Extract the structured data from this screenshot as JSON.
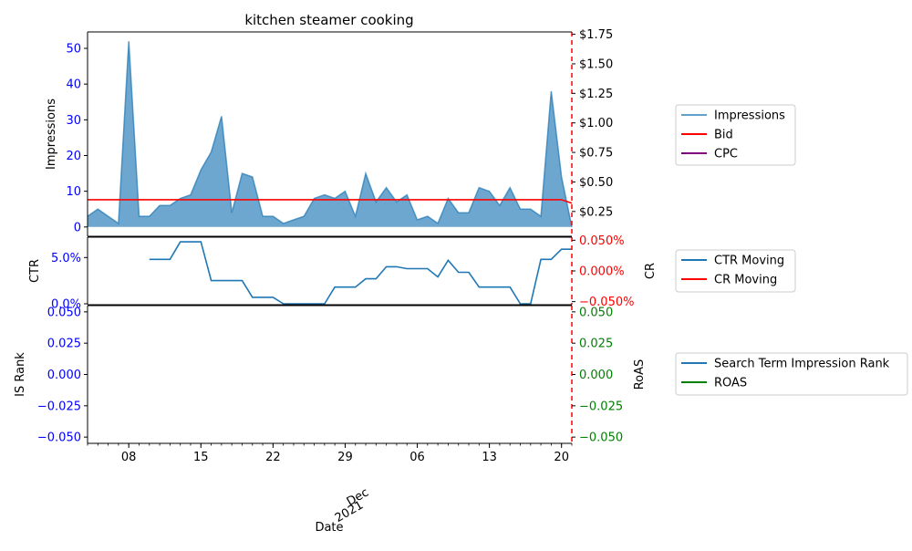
{
  "colors": {
    "impressions": "#1f77b4",
    "bid": "#ff0000",
    "cpc": "#800080",
    "ctr": "#1f77b4",
    "cr": "#ff0000",
    "is_rank": "#1f77b4",
    "roas": "#008000",
    "left_ticks": "#0000ff",
    "cr_ticks": "#ff0000",
    "roas_ticks": "#008000"
  },
  "chart_data": {
    "type": "line",
    "title": "kitchen steamer cooking",
    "x_axis": {
      "label": "Date",
      "start": "2021-11-04",
      "end": "2021-12-21",
      "tick_labels": [
        "08",
        "15",
        "22",
        "29",
        "06",
        "13",
        "20"
      ],
      "tick_dates": [
        "2021-11-08",
        "2021-11-15",
        "2021-11-22",
        "2021-11-29",
        "2021-12-06",
        "2021-12-13",
        "2021-12-20"
      ],
      "month_label": "Dec",
      "year_label": "2021",
      "month_label_date": "2021-12-01"
    },
    "panels": [
      {
        "name": "impressions-panel",
        "left_axis": {
          "label": "Impressions",
          "ylim": [
            -2.6,
            54.6
          ],
          "ticks": [
            0,
            10,
            20,
            30,
            40,
            50
          ],
          "tick_labels": [
            "0",
            "10",
            "20",
            "30",
            "40",
            "50"
          ]
        },
        "right_axis": {
          "label": "",
          "ylim": [
            0.04,
            1.77
          ],
          "ticks": [
            0.25,
            0.5,
            0.75,
            1.0,
            1.25,
            1.5,
            1.75
          ],
          "tick_labels": [
            "$0.25",
            "$0.50",
            "$0.75",
            "$1.00",
            "$1.25",
            "$1.50",
            "$1.75"
          ]
        },
        "legend": [
          "Impressions",
          "Bid",
          "CPC"
        ],
        "series": [
          {
            "name": "Impressions",
            "axis": "left",
            "kind": "area",
            "x": [
              "2021-11-04",
              "2021-11-05",
              "2021-11-06",
              "2021-11-07",
              "2021-11-08",
              "2021-11-09",
              "2021-11-10",
              "2021-11-11",
              "2021-11-12",
              "2021-11-13",
              "2021-11-14",
              "2021-11-15",
              "2021-11-16",
              "2021-11-17",
              "2021-11-18",
              "2021-11-19",
              "2021-11-20",
              "2021-11-21",
              "2021-11-22",
              "2021-11-23",
              "2021-11-24",
              "2021-11-25",
              "2021-11-26",
              "2021-11-27",
              "2021-11-28",
              "2021-11-29",
              "2021-11-30",
              "2021-12-01",
              "2021-12-02",
              "2021-12-03",
              "2021-12-04",
              "2021-12-05",
              "2021-12-06",
              "2021-12-07",
              "2021-12-08",
              "2021-12-09",
              "2021-12-10",
              "2021-12-11",
              "2021-12-12",
              "2021-12-13",
              "2021-12-14",
              "2021-12-15",
              "2021-12-16",
              "2021-12-17",
              "2021-12-18",
              "2021-12-19",
              "2021-12-20",
              "2021-12-21"
            ],
            "values": [
              3,
              5,
              3,
              1,
              52,
              3,
              3,
              6,
              6,
              8,
              9,
              16,
              21,
              31,
              4,
              15,
              14,
              3,
              3,
              1,
              2,
              3,
              8,
              9,
              8,
              10,
              3,
              15,
              7,
              11,
              7,
              9,
              2,
              3,
              1,
              8,
              4,
              4,
              11,
              10,
              6,
              11,
              5,
              5,
              3,
              38,
              14,
              0
            ]
          },
          {
            "name": "Bid",
            "axis": "right",
            "kind": "line",
            "x": [
              "2021-11-04",
              "2021-12-20",
              "2021-12-21"
            ],
            "values": [
              0.35,
              0.35,
              0.32
            ]
          }
        ]
      },
      {
        "name": "ctr-panel",
        "left_axis": {
          "label": "CTR",
          "ylim": [
            -0.001,
            0.072
          ],
          "ticks": [
            0.0,
            0.05
          ],
          "tick_labels": [
            "0.0%",
            "5.0%"
          ]
        },
        "right_axis": {
          "label": "CR",
          "ylim": [
            -0.055,
            0.055
          ],
          "ticks": [
            -0.05,
            0.0,
            0.05
          ],
          "tick_labels": [
            "−0.050%",
            "0.000%",
            "0.050%"
          ]
        },
        "legend": [
          "CTR Moving",
          "CR Moving"
        ],
        "series": [
          {
            "name": "CTR Moving",
            "axis": "left",
            "kind": "line",
            "x": [
              "2021-11-10",
              "2021-11-11",
              "2021-11-12",
              "2021-11-13",
              "2021-11-14",
              "2021-11-15",
              "2021-11-16",
              "2021-11-17",
              "2021-11-18",
              "2021-11-19",
              "2021-11-20",
              "2021-11-21",
              "2021-11-22",
              "2021-11-23",
              "2021-11-24",
              "2021-11-25",
              "2021-11-26",
              "2021-11-27",
              "2021-11-28",
              "2021-11-29",
              "2021-11-30",
              "2021-12-01",
              "2021-12-02",
              "2021-12-03",
              "2021-12-04",
              "2021-12-05",
              "2021-12-06",
              "2021-12-07",
              "2021-12-08",
              "2021-12-09",
              "2021-12-10",
              "2021-12-11",
              "2021-12-12",
              "2021-12-13",
              "2021-12-14",
              "2021-12-15",
              "2021-12-16",
              "2021-12-17",
              "2021-12-18",
              "2021-12-19",
              "2021-12-20",
              "2021-12-21"
            ],
            "values": [
              0.048,
              0.048,
              0.048,
              0.067,
              0.067,
              0.067,
              0.025,
              0.025,
              0.025,
              0.025,
              0.007,
              0.007,
              0.007,
              0.0,
              0.0,
              0.0,
              0.0,
              0.0,
              0.018,
              0.018,
              0.018,
              0.027,
              0.027,
              0.04,
              0.04,
              0.038,
              0.038,
              0.038,
              0.029,
              0.047,
              0.034,
              0.034,
              0.018,
              0.018,
              0.018,
              0.018,
              0.0,
              0.0,
              0.048,
              0.048,
              0.059,
              0.059
            ]
          }
        ]
      },
      {
        "name": "is-rank-panel",
        "left_axis": {
          "label": "IS Rank",
          "ylim": [
            -0.055,
            0.055
          ],
          "ticks": [
            -0.05,
            -0.025,
            0.0,
            0.025,
            0.05
          ],
          "tick_labels": [
            "−0.050",
            "−0.025",
            "0.000",
            "0.025",
            "0.050"
          ]
        },
        "right_axis": {
          "label": "RoAS",
          "ylim": [
            -0.055,
            0.055
          ],
          "ticks": [
            -0.05,
            -0.025,
            0.0,
            0.025,
            0.05
          ],
          "tick_labels": [
            "−0.050",
            "−0.025",
            "0.000",
            "0.025",
            "0.050"
          ]
        },
        "legend": [
          "Search Term Impression Rank",
          "ROAS"
        ],
        "series": []
      }
    ],
    "grid": false
  }
}
